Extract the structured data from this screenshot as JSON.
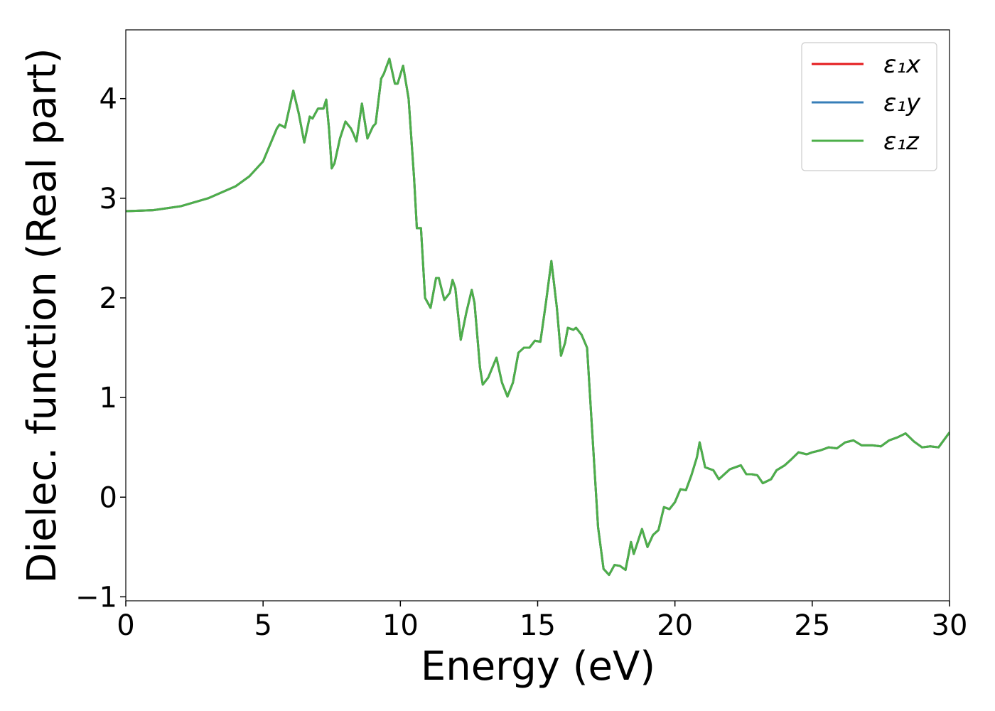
{
  "chart_data": {
    "type": "line",
    "xlabel": "Energy (eV)",
    "ylabel": "Dielec. function (Real part)",
    "xlim": [
      0,
      30
    ],
    "xticks": [
      0,
      5,
      10,
      15,
      20,
      25,
      30
    ],
    "ylim": [
      -1.04,
      4.69
    ],
    "yticks": [
      {
        "value": -1,
        "label": "−1"
      },
      0,
      1,
      2,
      3,
      4
    ],
    "legend": "upper right",
    "x": [
      0,
      1,
      2,
      3,
      4,
      4.5,
      5,
      5.5,
      5.6,
      5.8,
      6.1,
      6.3,
      6.5,
      6.7,
      6.8,
      7.0,
      7.2,
      7.3,
      7.4,
      7.5,
      7.6,
      7.8,
      8.0,
      8.2,
      8.3,
      8.4,
      8.6,
      8.8,
      9.0,
      9.1,
      9.3,
      9.4,
      9.6,
      9.8,
      9.9,
      10.1,
      10.3,
      10.5,
      10.6,
      10.75,
      10.9,
      11.1,
      11.3,
      11.4,
      11.6,
      11.8,
      11.9,
      12.0,
      12.2,
      12.4,
      12.6,
      12.7,
      12.9,
      13.0,
      13.2,
      13.5,
      13.7,
      13.9,
      14.1,
      14.3,
      14.5,
      14.7,
      14.9,
      15.1,
      15.3,
      15.5,
      15.7,
      15.85,
      16.0,
      16.1,
      16.3,
      16.4,
      16.6,
      16.8,
      17.0,
      17.2,
      17.4,
      17.6,
      17.8,
      18.0,
      18.2,
      18.4,
      18.5,
      18.8,
      19.0,
      19.2,
      19.4,
      19.6,
      19.8,
      20.0,
      20.2,
      20.4,
      20.6,
      20.8,
      20.9,
      21.1,
      21.3,
      21.4,
      21.6,
      21.8,
      22.0,
      22.2,
      22.4,
      22.6,
      22.8,
      23.0,
      23.2,
      23.5,
      23.7,
      24.0,
      24.2,
      24.5,
      24.8,
      25.0,
      25.3,
      25.6,
      25.9,
      26.2,
      26.5,
      26.8,
      27.2,
      27.5,
      27.8,
      28.1,
      28.4,
      28.7,
      29.0,
      29.3,
      29.6,
      30.0
    ],
    "series": [
      {
        "name": "ε₁x",
        "color": "#e41a1c",
        "values": [
          2.87,
          2.88,
          2.92,
          3.0,
          3.12,
          3.22,
          3.37,
          3.7,
          3.74,
          3.71,
          4.08,
          3.85,
          3.56,
          3.82,
          3.8,
          3.9,
          3.9,
          3.99,
          3.7,
          3.3,
          3.35,
          3.6,
          3.77,
          3.7,
          3.64,
          3.57,
          3.95,
          3.6,
          3.72,
          3.75,
          4.2,
          4.25,
          4.4,
          4.15,
          4.15,
          4.33,
          4.0,
          3.2,
          2.7,
          2.7,
          2.0,
          1.9,
          2.2,
          2.2,
          1.98,
          2.05,
          2.18,
          2.1,
          1.58,
          1.85,
          2.08,
          1.95,
          1.3,
          1.13,
          1.2,
          1.4,
          1.15,
          1.01,
          1.15,
          1.45,
          1.5,
          1.5,
          1.57,
          1.56,
          1.95,
          2.37,
          1.9,
          1.42,
          1.55,
          1.7,
          1.68,
          1.7,
          1.63,
          1.5,
          0.6,
          -0.3,
          -0.72,
          -0.78,
          -0.68,
          -0.69,
          -0.73,
          -0.45,
          -0.57,
          -0.32,
          -0.5,
          -0.38,
          -0.33,
          -0.1,
          -0.12,
          -0.05,
          0.08,
          0.07,
          0.22,
          0.4,
          0.55,
          0.3,
          0.28,
          0.27,
          0.18,
          0.23,
          0.28,
          0.3,
          0.32,
          0.23,
          0.23,
          0.22,
          0.14,
          0.18,
          0.27,
          0.32,
          0.37,
          0.45,
          0.43,
          0.45,
          0.47,
          0.5,
          0.49,
          0.55,
          0.57,
          0.52,
          0.52,
          0.51,
          0.57,
          0.6,
          0.64,
          0.56,
          0.5,
          0.51,
          0.5,
          0.65
        ]
      },
      {
        "name": "ε₁y",
        "color": "#377eb8",
        "values": [
          2.87,
          2.88,
          2.92,
          3.0,
          3.12,
          3.22,
          3.37,
          3.7,
          3.74,
          3.71,
          4.08,
          3.85,
          3.56,
          3.82,
          3.8,
          3.9,
          3.9,
          3.99,
          3.7,
          3.3,
          3.35,
          3.6,
          3.77,
          3.7,
          3.64,
          3.57,
          3.95,
          3.6,
          3.72,
          3.75,
          4.2,
          4.25,
          4.4,
          4.15,
          4.15,
          4.33,
          4.0,
          3.2,
          2.7,
          2.7,
          2.0,
          1.9,
          2.2,
          2.2,
          1.98,
          2.05,
          2.18,
          2.1,
          1.58,
          1.85,
          2.08,
          1.95,
          1.3,
          1.13,
          1.2,
          1.4,
          1.15,
          1.01,
          1.15,
          1.45,
          1.5,
          1.5,
          1.57,
          1.56,
          1.95,
          2.37,
          1.9,
          1.42,
          1.55,
          1.7,
          1.68,
          1.7,
          1.63,
          1.5,
          0.6,
          -0.3,
          -0.72,
          -0.78,
          -0.68,
          -0.69,
          -0.73,
          -0.45,
          -0.57,
          -0.32,
          -0.5,
          -0.38,
          -0.33,
          -0.1,
          -0.12,
          -0.05,
          0.08,
          0.07,
          0.22,
          0.4,
          0.55,
          0.3,
          0.28,
          0.27,
          0.18,
          0.23,
          0.28,
          0.3,
          0.32,
          0.23,
          0.23,
          0.22,
          0.14,
          0.18,
          0.27,
          0.32,
          0.37,
          0.45,
          0.43,
          0.45,
          0.47,
          0.5,
          0.49,
          0.55,
          0.57,
          0.52,
          0.52,
          0.51,
          0.57,
          0.6,
          0.64,
          0.56,
          0.5,
          0.51,
          0.5,
          0.65
        ]
      },
      {
        "name": "ε₁z",
        "color": "#4daf4a",
        "values": [
          2.87,
          2.88,
          2.92,
          3.0,
          3.12,
          3.22,
          3.37,
          3.7,
          3.74,
          3.71,
          4.08,
          3.85,
          3.56,
          3.82,
          3.8,
          3.9,
          3.9,
          3.99,
          3.7,
          3.3,
          3.35,
          3.6,
          3.77,
          3.7,
          3.64,
          3.57,
          3.95,
          3.6,
          3.72,
          3.75,
          4.2,
          4.25,
          4.4,
          4.15,
          4.15,
          4.33,
          4.0,
          3.2,
          2.7,
          2.7,
          2.0,
          1.9,
          2.2,
          2.2,
          1.98,
          2.05,
          2.18,
          2.1,
          1.58,
          1.85,
          2.08,
          1.95,
          1.3,
          1.13,
          1.2,
          1.4,
          1.15,
          1.01,
          1.15,
          1.45,
          1.5,
          1.5,
          1.57,
          1.56,
          1.95,
          2.37,
          1.9,
          1.42,
          1.55,
          1.7,
          1.68,
          1.7,
          1.63,
          1.5,
          0.6,
          -0.3,
          -0.72,
          -0.78,
          -0.68,
          -0.69,
          -0.73,
          -0.45,
          -0.57,
          -0.32,
          -0.5,
          -0.38,
          -0.33,
          -0.1,
          -0.12,
          -0.05,
          0.08,
          0.07,
          0.22,
          0.4,
          0.55,
          0.3,
          0.28,
          0.27,
          0.18,
          0.23,
          0.28,
          0.3,
          0.32,
          0.23,
          0.23,
          0.22,
          0.14,
          0.18,
          0.27,
          0.32,
          0.37,
          0.45,
          0.43,
          0.45,
          0.47,
          0.5,
          0.49,
          0.55,
          0.57,
          0.52,
          0.52,
          0.51,
          0.57,
          0.6,
          0.64,
          0.56,
          0.5,
          0.51,
          0.5,
          0.65
        ]
      }
    ]
  }
}
